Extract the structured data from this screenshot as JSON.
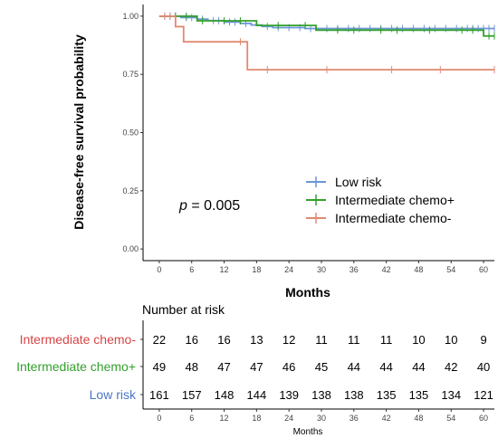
{
  "chart_data": {
    "type": "line",
    "subtype": "kaplan-meier",
    "xlabel": "Months",
    "ylabel": "Disease-free survival probability",
    "xlim": [
      -3,
      62
    ],
    "ylim": [
      -0.05,
      1.05
    ],
    "x_ticks": [
      0,
      6,
      12,
      18,
      24,
      30,
      36,
      42,
      48,
      54,
      60
    ],
    "x_tick_labels": [
      "0",
      "6",
      "12",
      "18",
      "24",
      "30",
      "36",
      "42",
      "48",
      "54",
      "60"
    ],
    "y_ticks": [
      0,
      0.25,
      0.5,
      0.75,
      1.0
    ],
    "y_tick_labels": [
      "0.00",
      "0.25",
      "0.50",
      "0.75",
      "1.00"
    ],
    "annotation": {
      "prefix": "p",
      "text": " = 0.005"
    },
    "legend_placement": "right",
    "series": [
      {
        "name": "Low risk",
        "color": "#6b96d6",
        "steps": [
          [
            0,
            1.0
          ],
          [
            4,
            0.994
          ],
          [
            7,
            0.987
          ],
          [
            9,
            0.981
          ],
          [
            12,
            0.975
          ],
          [
            15,
            0.969
          ],
          [
            17,
            0.962
          ],
          [
            19,
            0.956
          ],
          [
            21,
            0.951
          ],
          [
            27,
            0.947
          ],
          [
            40,
            0.947
          ]
        ],
        "censors": [
          1,
          2,
          3,
          5,
          6,
          8,
          10,
          11,
          13,
          14,
          16,
          20,
          22,
          24,
          26,
          28,
          31,
          33,
          35,
          37,
          39,
          41,
          43,
          45,
          47,
          49,
          51,
          53,
          55,
          57,
          58,
          59,
          60,
          61,
          62
        ]
      },
      {
        "name": "Intermediate chemo+",
        "color": "#33a02c",
        "steps": [
          [
            0,
            1.0
          ],
          [
            7,
            0.98
          ],
          [
            18,
            0.96
          ],
          [
            29,
            0.94
          ],
          [
            60,
            0.915
          ]
        ],
        "censors": [
          3,
          5,
          8,
          12,
          15,
          22,
          27,
          33,
          36,
          41,
          44,
          50,
          56,
          58,
          61,
          62
        ]
      },
      {
        "name": "Intermediate chemo-",
        "color": "#e08a70",
        "steps": [
          [
            0,
            1.0
          ],
          [
            3,
            0.955
          ],
          [
            4.5,
            0.89
          ],
          [
            16.3,
            0.77
          ]
        ],
        "censors": [
          1,
          2,
          15,
          20,
          31,
          43,
          52,
          62
        ]
      }
    ]
  },
  "risk_table": {
    "title": "Number at risk",
    "xlabel": "Months",
    "x_tick_labels": [
      "0",
      "6",
      "12",
      "18",
      "24",
      "30",
      "36",
      "42",
      "48",
      "54",
      "60"
    ],
    "rows": [
      {
        "label": "Intermediate chemo-",
        "color": "#d64545",
        "values": [
          "22",
          "16",
          "16",
          "13",
          "12",
          "11",
          "11",
          "11",
          "10",
          "10",
          "9"
        ]
      },
      {
        "label": "Intermediate chemo+",
        "color": "#33a02c",
        "values": [
          "49",
          "48",
          "47",
          "47",
          "46",
          "45",
          "44",
          "44",
          "44",
          "42",
          "40"
        ]
      },
      {
        "label": "Low risk",
        "color": "#4a74c9",
        "values": [
          "161",
          "157",
          "148",
          "144",
          "139",
          "138",
          "138",
          "135",
          "135",
          "134",
          "121"
        ]
      }
    ]
  }
}
